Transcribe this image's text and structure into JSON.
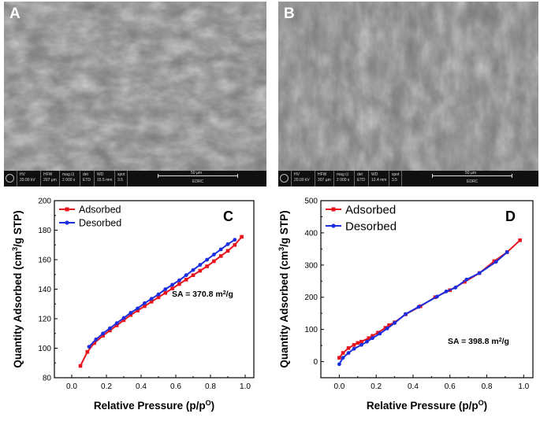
{
  "sem_images": [
    {
      "letter": "A",
      "hv": "HV",
      "hv_value": "20.00 kV",
      "hfw": "HFW",
      "hfw_value": "207 µm",
      "mag": "mag ⊡",
      "mag_value": "2 000 x",
      "det": "det",
      "det_value": "ETD",
      "wd": "WD",
      "wd_value": "15.5 mm",
      "spot": "spot",
      "spot_value": "3.5",
      "scale": "50 µm",
      "lab": "EDRC"
    },
    {
      "letter": "B",
      "hv": "HV",
      "hv_value": "20.00 kV",
      "hfw": "HFW",
      "hfw_value": "207 µm",
      "mag": "mag ⊡",
      "mag_value": "2 000 x",
      "det": "det",
      "det_value": "ETD",
      "wd": "WD",
      "wd_value": "12.4 mm",
      "spot": "spot",
      "spot_value": "3.5",
      "scale": "50 µm",
      "lab": "EDRC"
    }
  ],
  "chart_data": [
    {
      "type": "line",
      "panel_letter": "C",
      "xlabel": "Relative Pressure (p/p",
      "xlabel_sup": "O",
      "xlabel_end": ")",
      "ylabel": "Quantity Adsorbed (cm",
      "ylabel_sup": "3",
      "ylabel_end": "/g STP)",
      "xlim": [
        -0.1,
        1.05
      ],
      "ylim": [
        80,
        200
      ],
      "xticks": [
        "0.0",
        "0.2",
        "0.4",
        "0.6",
        "0.8",
        "1.0"
      ],
      "xtick_values": [
        0,
        0.2,
        0.4,
        0.6,
        0.8,
        1.0
      ],
      "yticks": [
        "80",
        "100",
        "120",
        "140",
        "160",
        "180",
        "200"
      ],
      "ytick_values": [
        80,
        100,
        120,
        140,
        160,
        180,
        200
      ],
      "annotation": "SA = 370.8 m",
      "annotation_sup": "2",
      "annotation_end": "/g",
      "grid": false,
      "legend_position": "top-left",
      "series": [
        {
          "name": "Adsorbed",
          "color": "#e8141c",
          "marker": "square",
          "x": [
            0.05,
            0.09,
            0.13,
            0.18,
            0.22,
            0.26,
            0.3,
            0.34,
            0.38,
            0.42,
            0.46,
            0.5,
            0.54,
            0.58,
            0.62,
            0.66,
            0.7,
            0.74,
            0.78,
            0.82,
            0.86,
            0.9,
            0.94,
            0.98
          ],
          "y": [
            88,
            97.5,
            103.5,
            108.5,
            112,
            115.5,
            119,
            122.5,
            125.5,
            128.5,
            131.5,
            134.5,
            137.5,
            140.5,
            143.5,
            146.5,
            149.5,
            152.5,
            155.5,
            159,
            162.5,
            166,
            170,
            175.5
          ]
        },
        {
          "name": "Desorbed",
          "color": "#1a2ee0",
          "marker": "circle",
          "x": [
            0.1,
            0.14,
            0.18,
            0.22,
            0.26,
            0.3,
            0.34,
            0.38,
            0.42,
            0.46,
            0.5,
            0.54,
            0.58,
            0.62,
            0.66,
            0.7,
            0.74,
            0.78,
            0.82,
            0.86,
            0.9,
            0.94
          ],
          "y": [
            101,
            106,
            110,
            113.5,
            117,
            120.5,
            124,
            127,
            130.5,
            133.5,
            136.5,
            140,
            143,
            146,
            149.5,
            153,
            156.5,
            160,
            163.5,
            167,
            170.5,
            173.5
          ]
        }
      ]
    },
    {
      "type": "line",
      "panel_letter": "D",
      "xlabel": "Relative Pressure (p/p",
      "xlabel_sup": "O",
      "xlabel_end": ")",
      "ylabel": "Quantity Adsorbed (cm",
      "ylabel_sup": "3",
      "ylabel_end": "/g STP)",
      "xlim": [
        -0.1,
        1.05
      ],
      "ylim": [
        -50,
        500
      ],
      "xticks": [
        "0.0",
        "0.2",
        "0.4",
        "0.6",
        "0.8",
        "1.0"
      ],
      "xtick_values": [
        0,
        0.2,
        0.4,
        0.6,
        0.8,
        1.0
      ],
      "yticks": [
        "0",
        "100",
        "200",
        "300",
        "400",
        "500"
      ],
      "ytick_values": [
        0,
        100,
        200,
        300,
        400,
        500
      ],
      "annotation": "SA = 398.8 m",
      "annotation_sup": "2",
      "annotation_end": "/g",
      "grid": false,
      "legend_position": "top-left",
      "series": [
        {
          "name": "Adsorbed",
          "color": "#e8141c",
          "marker": "square",
          "x": [
            0.0,
            0.02,
            0.05,
            0.08,
            0.1,
            0.12,
            0.16,
            0.18,
            0.21,
            0.25,
            0.27,
            0.3,
            0.36,
            0.44,
            0.52,
            0.6,
            0.68,
            0.76,
            0.84,
            0.91,
            0.98
          ],
          "y": [
            12,
            27,
            42,
            52,
            58,
            62,
            73,
            80,
            90,
            105,
            113,
            122,
            147,
            172,
            200,
            222,
            248,
            275,
            312,
            340,
            377
          ]
        },
        {
          "name": "Desorbed",
          "color": "#1a2ee0",
          "marker": "circle",
          "x": [
            0.0,
            0.02,
            0.05,
            0.08,
            0.12,
            0.15,
            0.18,
            0.22,
            0.26,
            0.3,
            0.36,
            0.43,
            0.53,
            0.58,
            0.63,
            0.69,
            0.76,
            0.85,
            0.91
          ],
          "y": [
            -8,
            12,
            27,
            40,
            52,
            62,
            73,
            87,
            103,
            120,
            148,
            170,
            202,
            218,
            230,
            255,
            275,
            310,
            340
          ]
        }
      ]
    }
  ]
}
